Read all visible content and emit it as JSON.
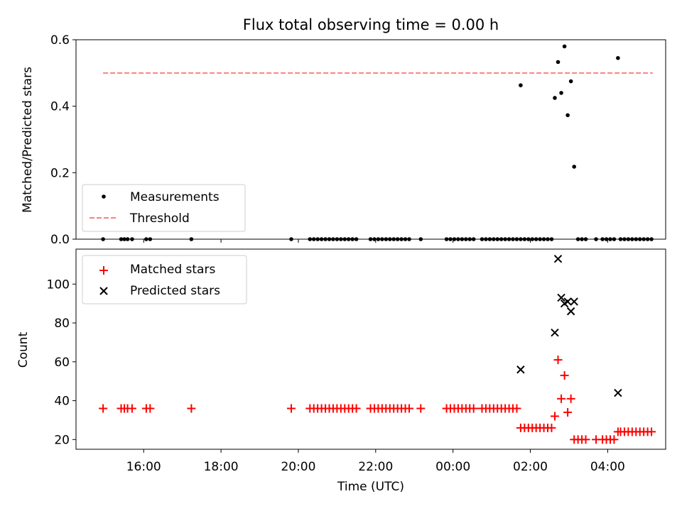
{
  "chart_data": [
    {
      "type": "scatter",
      "title": "Flux total observing time = 0.00 h",
      "xlabel": "",
      "ylabel": "Matched/Predicted stars",
      "ylim": [
        0,
        0.6
      ],
      "yticks": [
        "0.0",
        "0.2",
        "0.4",
        "0.6"
      ],
      "xlim": [
        "14:15",
        "05:30"
      ],
      "legend_position": "lower-left",
      "threshold": {
        "name": "Threshold",
        "value": 0.5,
        "x_range": [
          "14:57",
          "05:10"
        ],
        "color": "#ff7f7f",
        "style": "dashed"
      },
      "series": [
        {
          "name": "Measurements",
          "color": "#000000",
          "marker": "dot",
          "points": [
            [
              "14:57",
              0
            ],
            [
              "15:25",
              0
            ],
            [
              "15:30",
              0
            ],
            [
              "15:35",
              0
            ],
            [
              "15:42",
              0
            ],
            [
              "16:04",
              0
            ],
            [
              "16:10",
              0
            ],
            [
              "17:14",
              0
            ],
            [
              "19:49",
              0
            ],
            [
              "20:18",
              0
            ],
            [
              "20:24",
              0
            ],
            [
              "20:30",
              0
            ],
            [
              "20:36",
              0
            ],
            [
              "20:42",
              0
            ],
            [
              "20:48",
              0
            ],
            [
              "20:54",
              0
            ],
            [
              "21:00",
              0
            ],
            [
              "21:06",
              0
            ],
            [
              "21:12",
              0
            ],
            [
              "21:18",
              0
            ],
            [
              "21:24",
              0
            ],
            [
              "21:30",
              0
            ],
            [
              "21:52",
              0
            ],
            [
              "21:58",
              0
            ],
            [
              "22:04",
              0
            ],
            [
              "22:10",
              0
            ],
            [
              "22:16",
              0
            ],
            [
              "22:22",
              0
            ],
            [
              "22:28",
              0
            ],
            [
              "22:34",
              0
            ],
            [
              "22:40",
              0
            ],
            [
              "22:46",
              0
            ],
            [
              "22:52",
              0
            ],
            [
              "23:10",
              0
            ],
            [
              "23:50",
              0
            ],
            [
              "23:56",
              0
            ],
            [
              "00:02",
              0
            ],
            [
              "00:08",
              0
            ],
            [
              "00:14",
              0
            ],
            [
              "00:20",
              0
            ],
            [
              "00:26",
              0
            ],
            [
              "00:32",
              0
            ],
            [
              "00:45",
              0
            ],
            [
              "00:51",
              0
            ],
            [
              "00:57",
              0
            ],
            [
              "01:03",
              0
            ],
            [
              "01:09",
              0
            ],
            [
              "01:15",
              0
            ],
            [
              "01:21",
              0
            ],
            [
              "01:27",
              0
            ],
            [
              "01:33",
              0
            ],
            [
              "01:39",
              0
            ],
            [
              "01:45",
              0
            ],
            [
              "01:51",
              0
            ],
            [
              "01:57",
              0
            ],
            [
              "02:03",
              0
            ],
            [
              "02:09",
              0
            ],
            [
              "02:15",
              0
            ],
            [
              "02:21",
              0
            ],
            [
              "02:27",
              0
            ],
            [
              "02:33",
              0
            ],
            [
              "01:45",
              0.463
            ],
            [
              "02:38",
              0.425
            ],
            [
              "02:43",
              0.533
            ],
            [
              "02:48",
              0.44
            ],
            [
              "02:53",
              0.58
            ],
            [
              "02:58",
              0.373
            ],
            [
              "03:03",
              0.475
            ],
            [
              "03:08",
              0.218
            ],
            [
              "03:14",
              0
            ],
            [
              "03:20",
              0
            ],
            [
              "03:26",
              0
            ],
            [
              "03:42",
              0
            ],
            [
              "03:52",
              0
            ],
            [
              "03:58",
              0
            ],
            [
              "04:04",
              0
            ],
            [
              "04:10",
              0
            ],
            [
              "04:16",
              0.545
            ],
            [
              "04:20",
              0
            ],
            [
              "04:26",
              0
            ],
            [
              "04:32",
              0
            ],
            [
              "04:38",
              0
            ],
            [
              "04:44",
              0
            ],
            [
              "04:50",
              0
            ],
            [
              "04:56",
              0
            ],
            [
              "05:02",
              0
            ],
            [
              "05:08",
              0
            ]
          ]
        }
      ]
    },
    {
      "type": "scatter",
      "title": "",
      "xlabel": "Time (UTC)",
      "ylabel": "Count",
      "ylim": [
        15,
        118
      ],
      "yticks": [
        "20",
        "40",
        "60",
        "80",
        "100"
      ],
      "xticks": [
        "16:00",
        "18:00",
        "20:00",
        "22:00",
        "00:00",
        "02:00",
        "04:00"
      ],
      "xlim": [
        "14:15",
        "05:30"
      ],
      "legend_position": "upper-left",
      "series": [
        {
          "name": "Matched stars",
          "color": "#ff0000",
          "marker": "plus",
          "points": [
            [
              "14:57",
              36
            ],
            [
              "15:25",
              36
            ],
            [
              "15:30",
              36
            ],
            [
              "15:35",
              36
            ],
            [
              "15:42",
              36
            ],
            [
              "16:04",
              36
            ],
            [
              "16:10",
              36
            ],
            [
              "17:14",
              36
            ],
            [
              "19:49",
              36
            ],
            [
              "20:18",
              36
            ],
            [
              "20:24",
              36
            ],
            [
              "20:30",
              36
            ],
            [
              "20:36",
              36
            ],
            [
              "20:42",
              36
            ],
            [
              "20:48",
              36
            ],
            [
              "20:54",
              36
            ],
            [
              "21:00",
              36
            ],
            [
              "21:06",
              36
            ],
            [
              "21:12",
              36
            ],
            [
              "21:18",
              36
            ],
            [
              "21:24",
              36
            ],
            [
              "21:30",
              36
            ],
            [
              "21:52",
              36
            ],
            [
              "21:58",
              36
            ],
            [
              "22:04",
              36
            ],
            [
              "22:10",
              36
            ],
            [
              "22:16",
              36
            ],
            [
              "22:22",
              36
            ],
            [
              "22:28",
              36
            ],
            [
              "22:34",
              36
            ],
            [
              "22:40",
              36
            ],
            [
              "22:46",
              36
            ],
            [
              "22:52",
              36
            ],
            [
              "23:10",
              36
            ],
            [
              "23:50",
              36
            ],
            [
              "23:56",
              36
            ],
            [
              "00:02",
              36
            ],
            [
              "00:08",
              36
            ],
            [
              "00:14",
              36
            ],
            [
              "00:20",
              36
            ],
            [
              "00:26",
              36
            ],
            [
              "00:32",
              36
            ],
            [
              "00:45",
              36
            ],
            [
              "00:51",
              36
            ],
            [
              "00:57",
              36
            ],
            [
              "01:03",
              36
            ],
            [
              "01:09",
              36
            ],
            [
              "01:15",
              36
            ],
            [
              "01:21",
              36
            ],
            [
              "01:27",
              36
            ],
            [
              "01:33",
              36
            ],
            [
              "01:39",
              36
            ],
            [
              "01:45",
              26
            ],
            [
              "01:51",
              26
            ],
            [
              "01:57",
              26
            ],
            [
              "02:03",
              26
            ],
            [
              "02:09",
              26
            ],
            [
              "02:15",
              26
            ],
            [
              "02:21",
              26
            ],
            [
              "02:27",
              26
            ],
            [
              "02:33",
              26
            ],
            [
              "02:38",
              32
            ],
            [
              "02:43",
              61
            ],
            [
              "02:48",
              41
            ],
            [
              "02:53",
              53
            ],
            [
              "02:58",
              34
            ],
            [
              "03:03",
              41
            ],
            [
              "03:08",
              20
            ],
            [
              "03:14",
              20
            ],
            [
              "03:20",
              20
            ],
            [
              "03:26",
              20
            ],
            [
              "03:42",
              20
            ],
            [
              "03:52",
              20
            ],
            [
              "03:58",
              20
            ],
            [
              "04:04",
              20
            ],
            [
              "04:10",
              20
            ],
            [
              "04:16",
              24
            ],
            [
              "04:20",
              24
            ],
            [
              "04:26",
              24
            ],
            [
              "04:32",
              24
            ],
            [
              "04:38",
              24
            ],
            [
              "04:44",
              24
            ],
            [
              "04:50",
              24
            ],
            [
              "04:56",
              24
            ],
            [
              "05:02",
              24
            ],
            [
              "05:08",
              24
            ]
          ]
        },
        {
          "name": "Predicted stars",
          "color": "#000000",
          "marker": "x",
          "points": [
            [
              "01:45",
              56
            ],
            [
              "02:38",
              75
            ],
            [
              "02:43",
              113
            ],
            [
              "02:48",
              93
            ],
            [
              "02:53",
              90
            ],
            [
              "02:58",
              91
            ],
            [
              "03:03",
              86
            ],
            [
              "03:08",
              91
            ],
            [
              "04:16",
              44
            ]
          ]
        }
      ]
    }
  ]
}
